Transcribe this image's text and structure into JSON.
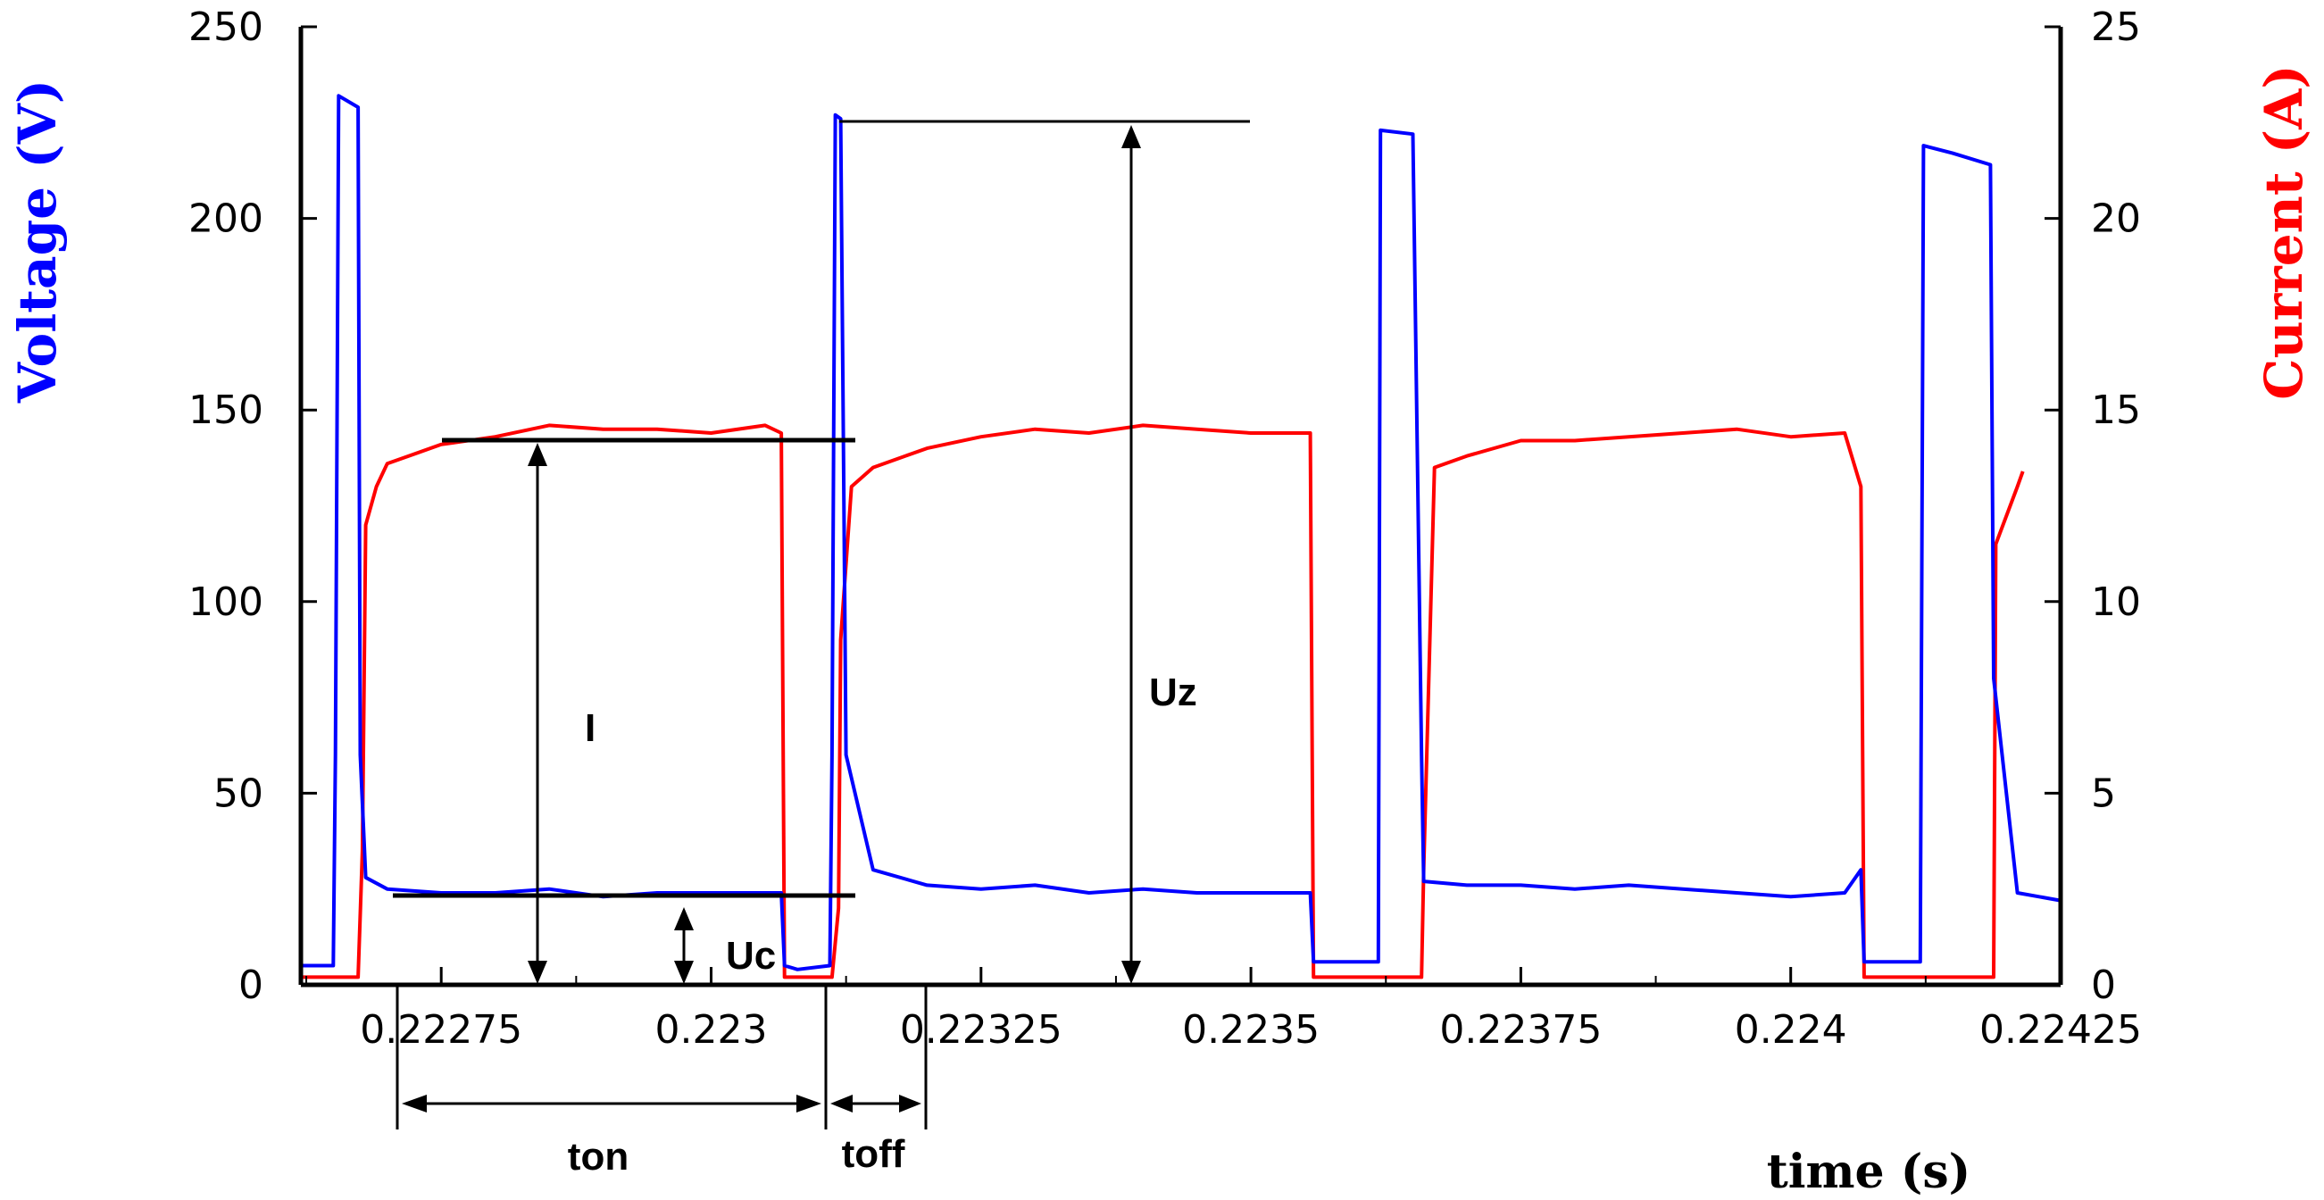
{
  "chart_data": {
    "type": "line",
    "xlabel": "time (s)",
    "ylabel_left": "Voltage (V)",
    "ylabel_right": "Current (A)",
    "colors": {
      "voltage": "#0000ff",
      "current": "#ff0000",
      "axis": "#000000"
    },
    "xlim": [
      0.22262,
      0.22425
    ],
    "ylim_left": [
      0,
      250
    ],
    "ylim_right": [
      0,
      25
    ],
    "x_ticks": [
      0.22275,
      0.223,
      0.22325,
      0.2235,
      0.22375,
      0.224,
      0.22425
    ],
    "x_tick_labels": [
      "0.22275",
      "0.223",
      "0.22325",
      "0.2235",
      "0.22375",
      "0.224",
      "0.22425"
    ],
    "y_left_ticks": [
      0,
      50,
      100,
      150,
      200,
      250
    ],
    "y_left_tick_labels": [
      "0",
      "50",
      "100",
      "150",
      "200",
      "250"
    ],
    "y_right_ticks": [
      0,
      5,
      10,
      15,
      20,
      25
    ],
    "y_right_tick_labels": [
      "0",
      "5",
      "10",
      "15",
      "20",
      "25"
    ],
    "grid": false,
    "series": [
      {
        "name": "Voltage (V)",
        "axis": "left",
        "x": [
          0.22262,
          0.22264,
          0.22265,
          0.222652,
          0.222655,
          0.222673,
          0.222675,
          0.22268,
          0.2227,
          0.22275,
          0.2228,
          0.22285,
          0.2229,
          0.22295,
          0.223,
          0.22305,
          0.223065,
          0.223068,
          0.22308,
          0.22311,
          0.223112,
          0.223115,
          0.22312,
          0.223125,
          0.22315,
          0.2232,
          0.22325,
          0.2233,
          0.22335,
          0.2234,
          0.22345,
          0.2235,
          0.223555,
          0.223558,
          0.2236,
          0.223618,
          0.22362,
          0.22365,
          0.223658,
          0.22366,
          0.2237,
          0.22375,
          0.2238,
          0.22385,
          0.2239,
          0.22395,
          0.224,
          0.22405,
          0.224065,
          0.224068,
          0.22409,
          0.22412,
          0.224123,
          0.22415,
          0.224185,
          0.224188,
          0.22421,
          0.22425
        ],
        "y": [
          5,
          5,
          5,
          60,
          232,
          229,
          60,
          28,
          25,
          24,
          24,
          25,
          23,
          24,
          24,
          24,
          24,
          5,
          4,
          5,
          60,
          227,
          226,
          60,
          30,
          26,
          25,
          26,
          24,
          25,
          24,
          24,
          24,
          6,
          6,
          6,
          223,
          222,
          60,
          27,
          26,
          26,
          25,
          26,
          25,
          24,
          23,
          24,
          30,
          6,
          6,
          6,
          219,
          217,
          214,
          80,
          24,
          22
        ]
      },
      {
        "name": "Current (A)",
        "axis": "right",
        "x": [
          0.22262,
          0.22266,
          0.222673,
          0.222677,
          0.22268,
          0.22269,
          0.2227,
          0.22275,
          0.2228,
          0.22285,
          0.2229,
          0.22295,
          0.223,
          0.22305,
          0.223065,
          0.223068,
          0.22309,
          0.223112,
          0.223118,
          0.22312,
          0.22313,
          0.22315,
          0.2232,
          0.22325,
          0.2233,
          0.22335,
          0.2234,
          0.22345,
          0.2235,
          0.223555,
          0.223558,
          0.2236,
          0.22365,
          0.223658,
          0.22366,
          0.22367,
          0.2237,
          0.22375,
          0.2238,
          0.22385,
          0.2239,
          0.22395,
          0.224,
          0.22405,
          0.224065,
          0.224068,
          0.2241,
          0.224185,
          0.224188,
          0.22419,
          0.22421,
          0.224215
        ],
        "y": [
          0.2,
          0.2,
          0.2,
          3.5,
          12,
          13,
          13.6,
          14.1,
          14.3,
          14.6,
          14.5,
          14.5,
          14.4,
          14.6,
          14.4,
          0.2,
          0.2,
          0.2,
          2,
          9,
          13,
          13.5,
          14,
          14.3,
          14.5,
          14.4,
          14.6,
          14.5,
          14.4,
          14.4,
          0.2,
          0.2,
          0.2,
          0.2,
          3,
          13.5,
          13.8,
          14.2,
          14.2,
          14.3,
          14.4,
          14.5,
          14.3,
          14.4,
          13,
          0.2,
          0.2,
          0.2,
          0.2,
          11.5,
          13,
          13.4
        ]
      }
    ],
    "annotations": {
      "label_I": "I",
      "label_Uz": "Uz",
      "label_Uc": "Uc",
      "label_ton": "ton",
      "label_toff": "toff"
    }
  }
}
